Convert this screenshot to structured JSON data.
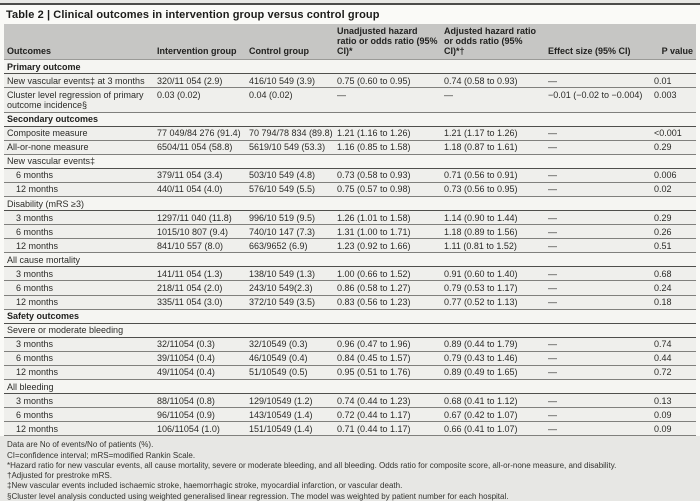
{
  "table": {
    "title": "Table 2 | Clinical outcomes in intervention group versus control group",
    "columns": [
      "Outcomes",
      "Intervention group",
      "Control group",
      "Unadjusted hazard ratio or odds ratio (95% CI)*",
      "Adjusted hazard ratio or odds ratio (95% CI)*†",
      "Effect size (95% CI)",
      "P value"
    ],
    "rows": [
      {
        "type": "section",
        "label": "Primary outcome"
      },
      {
        "type": "data",
        "label": "New vascular events‡ at 3 months",
        "values": [
          "320/11 054 (2.9)",
          "416/10 549 (3.9)",
          "0.75 (0.60 to 0.95)",
          "0.74 (0.58 to 0.93)",
          "—",
          "0.01"
        ]
      },
      {
        "type": "data",
        "label": "Cluster level regression of primary outcome incidence§",
        "values": [
          "0.03 (0.02)",
          "0.04 (0.02)",
          "—",
          "—",
          "−0.01 (−0.02 to −0.004)",
          "0.003"
        ]
      },
      {
        "type": "section",
        "label": "Secondary outcomes"
      },
      {
        "type": "data",
        "label": "Composite measure",
        "values": [
          "77 049/84 276 (91.4)",
          "70 794/78 834 (89.8)",
          "1.21 (1.16 to 1.26)",
          "1.21 (1.17 to 1.26)",
          "—",
          "<0.001"
        ]
      },
      {
        "type": "data",
        "label": "All-or-none measure",
        "values": [
          "6504/11 054 (58.8)",
          "5619/10 549 (53.3)",
          "1.16 (0.85 to 1.58)",
          "1.18 (0.87 to 1.61)",
          "—",
          "0.29"
        ]
      },
      {
        "type": "subsection",
        "label": "New vascular events‡"
      },
      {
        "type": "data",
        "indent": true,
        "label": "6 months",
        "values": [
          "379/11 054 (3.4)",
          "503/10 549 (4.8)",
          "0.73 (0.58 to 0.93)",
          "0.71 (0.56 to 0.91)",
          "—",
          "0.006"
        ]
      },
      {
        "type": "data",
        "indent": true,
        "label": "12 months",
        "values": [
          "440/11 054 (4.0)",
          "576/10 549 (5.5)",
          "0.75 (0.57 to 0.98)",
          "0.73 (0.56 to 0.95)",
          "—",
          "0.02"
        ]
      },
      {
        "type": "subsection",
        "label": "Disability (mRS ≥3)"
      },
      {
        "type": "data",
        "indent": true,
        "label": "3 months",
        "values": [
          "1297/11 040 (11.8)",
          "996/10 519 (9.5)",
          "1.26 (1.01 to 1.58)",
          "1.14 (0.90 to 1.44)",
          "—",
          "0.29"
        ]
      },
      {
        "type": "data",
        "indent": true,
        "label": "6 months",
        "values": [
          "1015/10 807 (9.4)",
          "740/10 147 (7.3)",
          "1.31 (1.00 to 1.71)",
          "1.18 (0.89 to 1.56)",
          "—",
          "0.26"
        ]
      },
      {
        "type": "data",
        "indent": true,
        "label": "12 months",
        "values": [
          "841/10 557 (8.0)",
          "663/9652 (6.9)",
          "1.23 (0.92 to 1.66)",
          "1.11 (0.81 to 1.52)",
          "—",
          "0.51"
        ]
      },
      {
        "type": "subsection",
        "label": "All cause mortality"
      },
      {
        "type": "data",
        "indent": true,
        "label": "3 months",
        "values": [
          "141/11 054 (1.3)",
          "138/10 549 (1.3)",
          "1.00 (0.66 to 1.52)",
          "0.91 (0.60 to 1.40)",
          "—",
          "0.68"
        ]
      },
      {
        "type": "data",
        "indent": true,
        "label": "6 months",
        "values": [
          "218/11 054 (2.0)",
          "243/10 549(2.3)",
          "0.86 (0.58 to 1.27)",
          "0.79 (0.53 to 1.17)",
          "—",
          "0.24"
        ]
      },
      {
        "type": "data",
        "indent": true,
        "label": "12 months",
        "values": [
          "335/11 054 (3.0)",
          "372/10 549 (3.5)",
          "0.83 (0.56 to 1.23)",
          "0.77 (0.52 to 1.13)",
          "—",
          "0.18"
        ]
      },
      {
        "type": "section",
        "label": "Safety outcomes"
      },
      {
        "type": "subsection",
        "label": "Severe or moderate bleeding"
      },
      {
        "type": "data",
        "indent": true,
        "label": "3 months",
        "values": [
          "32/11054 (0.3)",
          "32/10549 (0.3)",
          "0.96 (0.47 to 1.96)",
          "0.89 (0.44 to 1.79)",
          "—",
          "0.74"
        ]
      },
      {
        "type": "data",
        "indent": true,
        "label": "6 months",
        "values": [
          "39/11054 (0.4)",
          "46/10549 (0.4)",
          "0.84 (0.45 to 1.57)",
          "0.79 (0.43 to 1.46)",
          "—",
          "0.44"
        ]
      },
      {
        "type": "data",
        "indent": true,
        "label": "12 months",
        "values": [
          "49/11054 (0.4)",
          "51/10549 (0.5)",
          "0.95 (0.51 to 1.76)",
          "0.89 (0.49 to 1.65)",
          "—",
          "0.72"
        ]
      },
      {
        "type": "subsection",
        "label": "All bleeding"
      },
      {
        "type": "data",
        "indent": true,
        "label": "3 months",
        "values": [
          "88/11054 (0.8)",
          "129/10549 (1.2)",
          "0.74 (0.44 to 1.23)",
          "0.68 (0.41 to 1.12)",
          "—",
          "0.13"
        ]
      },
      {
        "type": "data",
        "indent": true,
        "label": "6 months",
        "values": [
          "96/11054 (0.9)",
          "143/10549 (1.4)",
          "0.72 (0.44 to 1.17)",
          "0.67 (0.42 to 1.07)",
          "—",
          "0.09"
        ]
      },
      {
        "type": "data",
        "indent": true,
        "label": "12 months",
        "values": [
          "106/11054 (1.0)",
          "151/10549 (1.4)",
          "0.71 (0.44 to 1.17)",
          "0.66 (0.41 to 1.07)",
          "—",
          "0.09"
        ]
      }
    ],
    "footnotes": [
      "Data are No of events/No of patients (%).",
      "CI=confidence interval; mRS=modified Rankin Scale.",
      "*Hazard ratio for new vascular events, all cause mortality, severe or moderate bleeding, and all bleeding. Odds ratio for composite score, all-or-none measure, and disability.",
      "†Adjusted for prestroke mRS.",
      "‡New vascular events included ischaemic stroke, haemorrhagic stroke, myocardial infarction, or vascular death.",
      "§Cluster level analysis conducted using weighted generalised linear regression. The model was weighted by patient number for each hospital."
    ]
  },
  "colors": {
    "header_bg": "#c6c6c4",
    "row_bg": "#efefec",
    "section_bg": "#f5f5f2",
    "page_bg": "#e7e7e4",
    "rule_dark": "#4c4c4a"
  }
}
